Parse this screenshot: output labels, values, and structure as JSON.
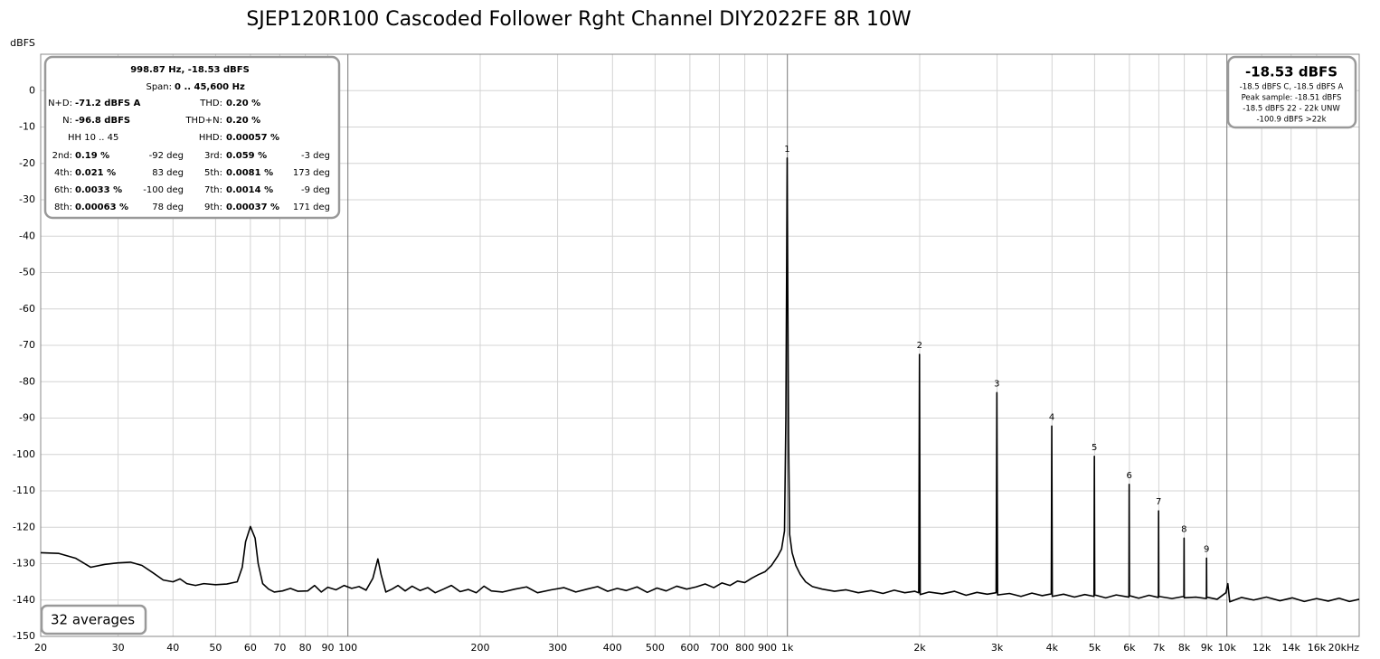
{
  "chart_data": {
    "type": "line",
    "title": "SJEP120R100 Cascoded Follower Rght Channel DIY2022FE 8R 10W",
    "y_label": "dBFS",
    "log_x": true,
    "grid": true,
    "color": "#000000",
    "xlim": [
      20,
      20000
    ],
    "ylim": [
      -150,
      10
    ],
    "xticks": [
      20,
      30,
      40,
      50,
      60,
      70,
      80,
      90,
      100,
      200,
      300,
      400,
      500,
      600,
      700,
      800,
      900,
      {
        "value": 1000,
        "label": "1k"
      },
      {
        "value": 2000,
        "label": "2k"
      },
      {
        "value": 3000,
        "label": "3k"
      },
      {
        "value": 4000,
        "label": "4k"
      },
      {
        "value": 5000,
        "label": "5k"
      },
      {
        "value": 6000,
        "label": "6k"
      },
      {
        "value": 7000,
        "label": "7k"
      },
      {
        "value": 8000,
        "label": "8k"
      },
      {
        "value": 9000,
        "label": "9k"
      },
      {
        "value": 10000,
        "label": "10k"
      },
      {
        "value": 12000,
        "label": "12k"
      },
      {
        "value": 14000,
        "label": "14k"
      },
      {
        "value": 16000,
        "label": "16k"
      },
      {
        "value": 20000,
        "label": "20kHz"
      }
    ],
    "yticks": [
      0,
      -10,
      -20,
      -30,
      -40,
      -50,
      -60,
      -70,
      -80,
      -90,
      -100,
      -110,
      -120,
      -130,
      -140,
      -150
    ],
    "x": [
      20,
      22,
      24,
      26,
      28,
      30,
      32,
      34,
      36,
      38,
      40,
      41.5,
      43,
      45,
      47,
      50,
      53,
      56,
      57.5,
      58.5,
      60,
      61.5,
      62.5,
      64,
      66,
      68,
      71,
      74,
      77,
      81,
      84,
      87,
      90,
      94,
      98,
      102,
      106,
      110,
      114,
      117,
      119,
      122,
      126,
      130,
      135,
      140,
      146,
      152,
      158,
      165,
      172,
      180,
      188,
      196,
      204,
      212,
      225,
      240,
      255,
      270,
      290,
      310,
      330,
      350,
      370,
      390,
      410,
      430,
      455,
      480,
      505,
      530,
      560,
      590,
      620,
      650,
      680,
      710,
      740,
      770,
      800,
      830,
      860,
      890,
      920,
      950,
      970,
      985,
      992,
      996,
      998.87,
      1002,
      1006,
      1012,
      1025,
      1045,
      1070,
      1100,
      1140,
      1200,
      1280,
      1360,
      1450,
      1550,
      1650,
      1750,
      1850,
      1950,
      1990,
      1997.7,
      2005,
      2100,
      2250,
      2400,
      2550,
      2700,
      2850,
      2985,
      2996.6,
      3008,
      3200,
      3400,
      3600,
      3800,
      3985,
      3995.5,
      4006,
      4250,
      4500,
      4750,
      4985,
      4994.4,
      5004,
      5300,
      5600,
      5985,
      5993.2,
      6003,
      6300,
      6650,
      6985,
      6992.1,
      7000,
      7500,
      7983,
      7991,
      7999,
      8500,
      8982,
      8989.8,
      8998,
      9500,
      9950,
      10050,
      10150,
      10800,
      11500,
      12300,
      13200,
      14100,
      15000,
      16000,
      17000,
      18000,
      19000,
      20000
    ],
    "values": [
      -127,
      -127.2,
      -128.5,
      -131,
      -130.2,
      -129.8,
      -129.6,
      -130.5,
      -132.5,
      -134.5,
      -135,
      -134.2,
      -135.5,
      -136,
      -135.5,
      -135.8,
      -135.6,
      -135,
      -131,
      -124,
      -119.8,
      -123,
      -130,
      -135.5,
      -137,
      -137.8,
      -137.5,
      -136.8,
      -137.6,
      -137.5,
      -136,
      -137.8,
      -136.5,
      -137.2,
      -136,
      -136.8,
      -136.3,
      -137.3,
      -134,
      -128.7,
      -133,
      -137.8,
      -137,
      -136,
      -137.5,
      -136.2,
      -137.4,
      -136.6,
      -138,
      -137,
      -136,
      -137.7,
      -137.1,
      -138,
      -136.2,
      -137.5,
      -137.8,
      -137,
      -136.4,
      -138,
      -137.2,
      -136.6,
      -137.8,
      -137,
      -136.3,
      -137.6,
      -136.8,
      -137.4,
      -136.4,
      -137.9,
      -136.7,
      -137.5,
      -136.2,
      -137,
      -136.4,
      -135.6,
      -136.6,
      -135.3,
      -136,
      -134.8,
      -135.2,
      -134,
      -133,
      -132.2,
      -130.5,
      -128,
      -126,
      -121,
      -90,
      -50,
      -18.53,
      -55,
      -95,
      -122,
      -127,
      -130.5,
      -133,
      -135,
      -136.3,
      -137,
      -137.6,
      -137.2,
      -138,
      -137.4,
      -138.2,
      -137.3,
      -138,
      -137.6,
      -138,
      -72.5,
      -138.5,
      -137.8,
      -138.3,
      -137.6,
      -138.7,
      -137.9,
      -138.4,
      -138,
      -83,
      -138.6,
      -138.2,
      -139,
      -138.1,
      -138.8,
      -138.3,
      -92.2,
      -139,
      -138.4,
      -139.2,
      -138.5,
      -139,
      -100.5,
      -138.6,
      -139.4,
      -138.6,
      -139.2,
      -108.2,
      -138.8,
      -139.5,
      -138.7,
      -139.3,
      -115.5,
      -139,
      -139.6,
      -139,
      -123,
      -139.4,
      -139.2,
      -139.6,
      -128.5,
      -139.2,
      -139.8,
      -138,
      -135.5,
      -140.5,
      -139.3,
      -140,
      -139.2,
      -140.2,
      -139.4,
      -140.4,
      -139.6,
      -140.3,
      -139.5,
      -140.4,
      -139.8
    ],
    "peak_labels": [
      "1",
      "2",
      "3",
      "4",
      "5",
      "6",
      "7",
      "8",
      "9"
    ],
    "peak_freqs": [
      998.87,
      1997.7,
      2996.6,
      3995.5,
      4994.4,
      5993.2,
      6992.1,
      7991,
      8989.8
    ],
    "readout": {
      "header": "998.87 Hz, -18.53 dBFS",
      "span_label": "Span:",
      "span_value": "0 .. 45,600 Hz",
      "rows": [
        {
          "left": [
            "N+D:",
            "-71.2 dBFS A"
          ],
          "right": [
            "THD:",
            "0.20 %"
          ]
        },
        {
          "left": [
            "N:",
            "-96.8 dBFS"
          ],
          "right": [
            "THD+N:",
            "0.20 %"
          ]
        },
        {
          "left": [
            "HH 10 .. 45"
          ],
          "right": [
            "HHD:",
            "0.00057 %"
          ]
        }
      ],
      "harmonics": [
        {
          "label": "2nd:",
          "value": "0.19 %",
          "phase": "-92 deg"
        },
        {
          "label": "3rd:",
          "value": "0.059 %",
          "phase": "-3 deg"
        },
        {
          "label": "4th:",
          "value": "0.021 %",
          "phase": "83 deg"
        },
        {
          "label": "5th:",
          "value": "0.0081 %",
          "phase": "173 deg"
        },
        {
          "label": "6th:",
          "value": "0.0033 %",
          "phase": "-100 deg"
        },
        {
          "label": "7th:",
          "value": "0.0014 %",
          "phase": "-9 deg"
        },
        {
          "label": "8th:",
          "value": "0.00063 %",
          "phase": "78 deg"
        },
        {
          "label": "9th:",
          "value": "0.00037 %",
          "phase": "171 deg"
        }
      ]
    },
    "level": {
      "main": "-18.53 dBFS",
      "lines": [
        "-18.5 dBFS C, -18.5 dBFS A",
        "Peak sample: -18.51 dBFS",
        "-18.5 dBFS 22 - 22k UNW",
        "-100.9 dBFS >22k"
      ]
    },
    "averages": "32 averages"
  }
}
